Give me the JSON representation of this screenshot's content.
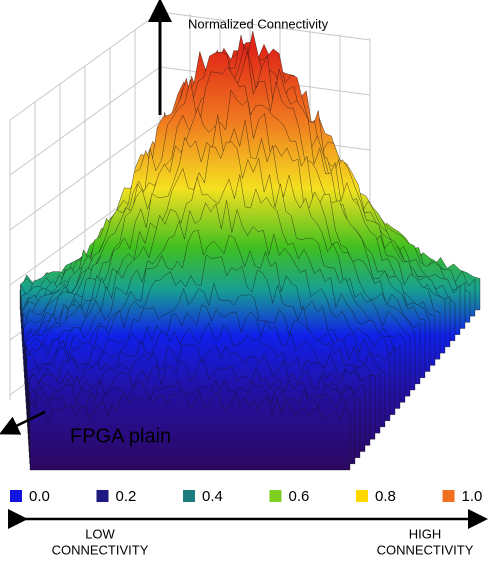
{
  "axis_label": "Normalized Connectivity",
  "plane_label": "FPGA plain",
  "legend": [
    {
      "label": "0.0",
      "color": "#1414e0"
    },
    {
      "label": "0.2",
      "color": "#1c1a7e"
    },
    {
      "label": "0.4",
      "color": "#1a7c7c"
    },
    {
      "label": "0.6",
      "color": "#7ed020"
    },
    {
      "label": "0.8",
      "color": "#ffd800"
    },
    {
      "label": "1.0",
      "color": "#f07020"
    }
  ],
  "low_label": [
    "LOW",
    "CONNECTIVITY"
  ],
  "high_label": [
    "HIGH",
    "CONNECTIVITY"
  ]
}
